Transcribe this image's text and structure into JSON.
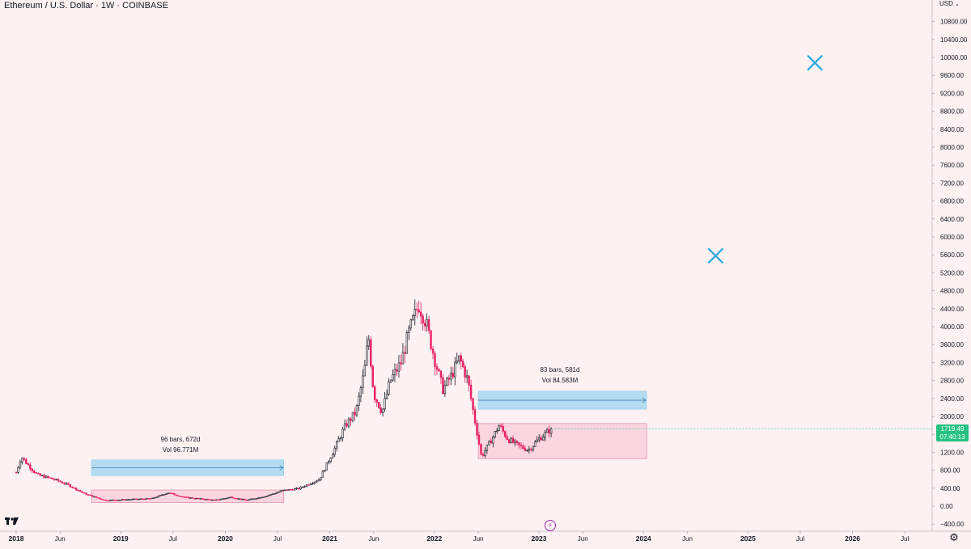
{
  "header": {
    "symbol": "Ethereum",
    "separator1": " / ",
    "quote": "U.S. Dollar",
    "separator2": " · ",
    "interval": "1W",
    "separator3": " · ",
    "exchange": "COINBASE"
  },
  "currency_selector": {
    "label": "USD"
  },
  "price_tag": {
    "price": "1719.49",
    "countdown": "07:40:13",
    "color": "#26c281"
  },
  "measure_boxes": [
    {
      "bars_label": "96 bars, 672d",
      "volume_label": "Vol 96.771M"
    },
    {
      "bars_label": "83 bars, 581d",
      "volume_label": "Vol 84.583M"
    }
  ],
  "chart_data": {
    "type": "candlestick",
    "title": "Ethereum / U.S. Dollar · 1W · COINBASE",
    "y_axis": {
      "min": -400,
      "max": 10800,
      "tick_values": [
        -400,
        0,
        400,
        800,
        1200,
        1600,
        2000,
        2400,
        2800,
        3200,
        3600,
        4000,
        4400,
        4800,
        5200,
        5600,
        6000,
        6400,
        6800,
        7200,
        7600,
        8000,
        8400,
        8800,
        9200,
        9600,
        10000,
        10400,
        10800
      ],
      "tick_labels": [
        "−400.00",
        "0.00",
        "400.00",
        "800.00",
        "1200.00",
        "1600.00",
        "2000.00",
        "2400.00",
        "2800.00",
        "3200.00",
        "3600.00",
        "4000.00",
        "4400.00",
        "4800.00",
        "5200.00",
        "5600.00",
        "6000.00",
        "6400.00",
        "6800.00",
        "7200.00",
        "7600.00",
        "8000.00",
        "8400.00",
        "8800.00",
        "9200.00",
        "9600.00",
        "10000.00",
        "10400.00",
        "10800.00"
      ]
    },
    "x_axis": {
      "start": 2018.0,
      "end": 2026.9,
      "ticks": [
        {
          "t": 2018.0,
          "label": "2018",
          "bold": true
        },
        {
          "t": 2018.42,
          "label": "Jun",
          "bold": false
        },
        {
          "t": 2019.0,
          "label": "2019",
          "bold": true
        },
        {
          "t": 2019.5,
          "label": "Jul",
          "bold": false
        },
        {
          "t": 2020.0,
          "label": "2020",
          "bold": true
        },
        {
          "t": 2020.5,
          "label": "Jul",
          "bold": false
        },
        {
          "t": 2021.0,
          "label": "2021",
          "bold": true
        },
        {
          "t": 2021.42,
          "label": "Jun",
          "bold": false
        },
        {
          "t": 2022.0,
          "label": "2022",
          "bold": true
        },
        {
          "t": 2022.42,
          "label": "Jun",
          "bold": false
        },
        {
          "t": 2023.0,
          "label": "2023",
          "bold": true
        },
        {
          "t": 2023.42,
          "label": "Jun",
          "bold": false
        },
        {
          "t": 2024.0,
          "label": "2024",
          "bold": true
        },
        {
          "t": 2024.42,
          "label": "Jun",
          "bold": false
        },
        {
          "t": 2025.0,
          "label": "2025",
          "bold": true
        },
        {
          "t": 2025.5,
          "label": "Jul",
          "bold": false
        },
        {
          "t": 2026.0,
          "label": "2026",
          "bold": true
        },
        {
          "t": 2026.5,
          "label": "Jul",
          "bold": false
        }
      ]
    },
    "price_anchors": [
      [
        2018.0,
        750
      ],
      [
        2018.05,
        1100
      ],
      [
        2018.12,
        900
      ],
      [
        2018.2,
        700
      ],
      [
        2018.28,
        650
      ],
      [
        2018.38,
        580
      ],
      [
        2018.5,
        470
      ],
      [
        2018.65,
        280
      ],
      [
        2018.85,
        130
      ],
      [
        2019.0,
        140
      ],
      [
        2019.3,
        170
      ],
      [
        2019.45,
        300
      ],
      [
        2019.6,
        200
      ],
      [
        2019.9,
        130
      ],
      [
        2020.05,
        200
      ],
      [
        2020.2,
        130
      ],
      [
        2020.4,
        230
      ],
      [
        2020.55,
        350
      ],
      [
        2020.7,
        390
      ],
      [
        2020.9,
        600
      ],
      [
        2021.05,
        1300
      ],
      [
        2021.15,
        1800
      ],
      [
        2021.25,
        2100
      ],
      [
        2021.33,
        3000
      ],
      [
        2021.37,
        3800
      ],
      [
        2021.42,
        2500
      ],
      [
        2021.5,
        2100
      ],
      [
        2021.58,
        2800
      ],
      [
        2021.68,
        3200
      ],
      [
        2021.76,
        3900
      ],
      [
        2021.85,
        4500
      ],
      [
        2021.92,
        4100
      ],
      [
        2022.0,
        3300
      ],
      [
        2022.08,
        2600
      ],
      [
        2022.16,
        2900
      ],
      [
        2022.24,
        3300
      ],
      [
        2022.32,
        2800
      ],
      [
        2022.38,
        2000
      ],
      [
        2022.45,
        1100
      ],
      [
        2022.55,
        1500
      ],
      [
        2022.62,
        1800
      ],
      [
        2022.7,
        1500
      ],
      [
        2022.8,
        1350
      ],
      [
        2022.9,
        1250
      ],
      [
        2023.0,
        1500
      ],
      [
        2023.08,
        1650
      ],
      [
        2023.12,
        1720
      ]
    ],
    "last_price": 1719.49,
    "bullish_color": "#131722",
    "bearish_color": "#e91e63",
    "drawings": {
      "measure_boxes": [
        {
          "t1": 2018.72,
          "t2": 2020.56,
          "top_band": [
            680,
            1030
          ],
          "bottom_band": [
            80,
            360
          ],
          "bars": 96,
          "days": 672,
          "volume": "96.771M"
        },
        {
          "t1": 2022.42,
          "t2": 2024.03,
          "top_band": [
            2160,
            2560
          ],
          "bottom_band": [
            1060,
            1840
          ],
          "bars": 83,
          "days": 581,
          "volume": "84.583M"
        }
      ],
      "blue_box_color": "#b3dcf2",
      "pink_box_color": "#fbd5df",
      "cross_markers": [
        {
          "t": 2025.64,
          "price": 9880
        },
        {
          "t": 2024.69,
          "price": 5580
        }
      ],
      "cross_color": "#29a8e0"
    }
  }
}
